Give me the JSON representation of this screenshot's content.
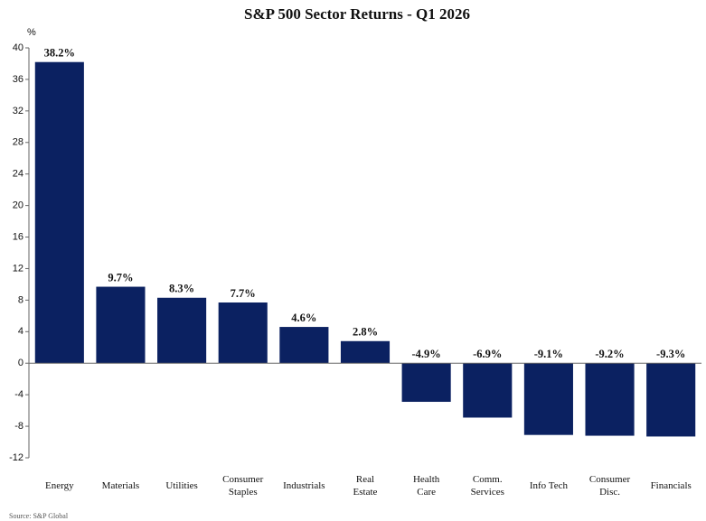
{
  "chart_data": {
    "type": "bar",
    "title": "S&P 500 Sector Returns - Q1 2026",
    "y_label": "%",
    "source": "Source: S&P Global",
    "categories": [
      "Energy",
      "Materials",
      "Utilities",
      "Consumer\nStaples",
      "Industrials",
      "Real\nEstate",
      "Health\nCare",
      "Comm.\nServices",
      "Info Tech",
      "Consumer\nDisc.",
      "Financials"
    ],
    "values": [
      38.2,
      9.7,
      8.3,
      7.7,
      4.6,
      2.8,
      -4.9,
      -6.9,
      -9.1,
      -9.2,
      -9.3
    ],
    "value_labels": [
      "38.2%",
      "9.7%",
      "8.3%",
      "7.7%",
      "4.6%",
      "2.8%",
      "-4.9%",
      "-6.9%",
      "-9.1%",
      "-9.2%",
      "-9.3%"
    ],
    "color": "#0b2161",
    "ylim": [
      -12,
      40
    ],
    "yticks": [
      -12,
      -8,
      -4,
      0,
      4,
      8,
      12,
      16,
      20,
      24,
      28,
      32,
      36,
      40
    ],
    "grid": false
  }
}
